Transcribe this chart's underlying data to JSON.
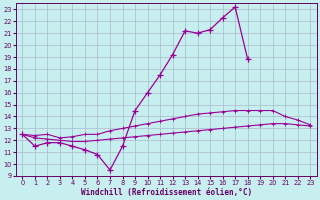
{
  "xlabel": "Windchill (Refroidissement éolien,°C)",
  "x_values": [
    0,
    1,
    2,
    3,
    4,
    5,
    6,
    7,
    8,
    9,
    10,
    11,
    12,
    13,
    14,
    15,
    16,
    17,
    18,
    19,
    20,
    21,
    22,
    23
  ],
  "line1_y": [
    12.5,
    11.5,
    11.8,
    11.8,
    11.5,
    11.2,
    10.8,
    9.5,
    11.5,
    14.5,
    16.0,
    17.5,
    19.2,
    21.2,
    21.0,
    21.3,
    22.3,
    23.2,
    18.8,
    null,
    null,
    null,
    null,
    null
  ],
  "line2_y": [
    12.5,
    12.4,
    12.5,
    12.2,
    12.3,
    12.5,
    12.5,
    12.8,
    13.0,
    13.2,
    13.4,
    13.6,
    13.8,
    14.0,
    14.2,
    14.3,
    14.4,
    14.5,
    14.5,
    14.5,
    14.5,
    14.0,
    13.7,
    13.3
  ],
  "line3_y": [
    12.5,
    12.2,
    12.1,
    12.0,
    11.9,
    11.9,
    12.0,
    12.1,
    12.2,
    12.3,
    12.4,
    12.5,
    12.6,
    12.7,
    12.8,
    12.9,
    13.0,
    13.1,
    13.2,
    13.3,
    13.4,
    13.4,
    13.3,
    13.2
  ],
  "bg_color": "#c8eff0",
  "line_color": "#990099",
  "grid_color": "#aabbcc",
  "ylim_min": 9,
  "ylim_max": 23.5,
  "yticks": [
    9,
    10,
    11,
    12,
    13,
    14,
    15,
    16,
    17,
    18,
    19,
    20,
    21,
    22,
    23
  ],
  "xticks": [
    0,
    1,
    2,
    3,
    4,
    5,
    6,
    7,
    8,
    9,
    10,
    11,
    12,
    13,
    14,
    15,
    16,
    17,
    18,
    19,
    20,
    21,
    22,
    23
  ],
  "tick_color": "#660066",
  "spine_color": "#660066",
  "label_fontsize": 5.5,
  "tick_fontsize": 4.8
}
